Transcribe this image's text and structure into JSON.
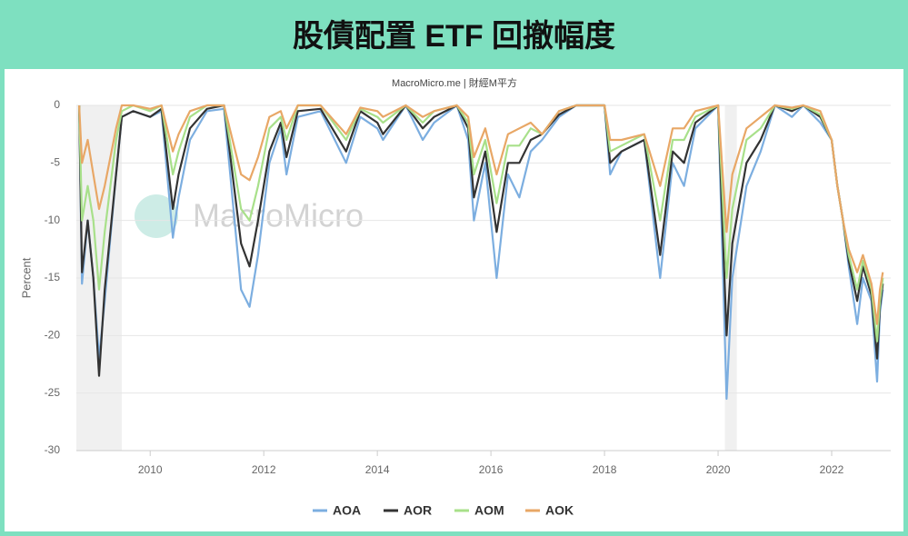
{
  "header": {
    "title": "股債配置 ETF 回撤幅度"
  },
  "chart_data": {
    "type": "line",
    "source": "MacroMicro.me | 財經M平方",
    "watermark": "MacroMicro",
    "y_label": "Percent",
    "xlim": [
      2008.7,
      2023.04
    ],
    "xticks": [
      2010,
      2012,
      2014,
      2016,
      2018,
      2020,
      2022
    ],
    "ylim": [
      -30,
      0
    ],
    "yticks": [
      0,
      -5,
      -10,
      -15,
      -20,
      -25,
      -30
    ],
    "grid": true,
    "legend": "bottom",
    "shaded_ranges": [
      [
        2008.7,
        2009.5
      ],
      [
        2020.12,
        2020.33
      ]
    ],
    "x": [
      2008.75,
      2008.8,
      2008.9,
      2009.0,
      2009.1,
      2009.2,
      2009.4,
      2009.5,
      2009.7,
      2010.0,
      2010.2,
      2010.4,
      2010.5,
      2010.7,
      2011.0,
      2011.3,
      2011.6,
      2011.75,
      2011.9,
      2012.1,
      2012.3,
      2012.4,
      2012.6,
      2013.0,
      2013.45,
      2013.7,
      2014.0,
      2014.1,
      2014.5,
      2014.8,
      2015.0,
      2015.4,
      2015.6,
      2015.7,
      2015.9,
      2016.1,
      2016.3,
      2016.5,
      2016.7,
      2016.9,
      2017.2,
      2017.5,
      2018.0,
      2018.1,
      2018.3,
      2018.7,
      2018.98,
      2019.2,
      2019.4,
      2019.6,
      2020.0,
      2020.15,
      2020.25,
      2020.5,
      2020.75,
      2021.0,
      2021.3,
      2021.5,
      2021.8,
      2022.0,
      2022.1,
      2022.2,
      2022.3,
      2022.45,
      2022.55,
      2022.7,
      2022.8,
      2022.85,
      2022.9
    ],
    "series": [
      {
        "name": "AOA",
        "color": "#7caee0",
        "values": [
          0,
          -15.5,
          -10,
          -15,
          -22,
          -17,
          -6,
          -1,
          -0.5,
          -1,
          -0.5,
          -11.5,
          -8,
          -3,
          -0.5,
          -0.3,
          -16,
          -17.5,
          -13,
          -5,
          -2,
          -6,
          -1,
          -0.5,
          -5,
          -1,
          -2,
          -3,
          0,
          -3,
          -1.5,
          0,
          -3,
          -10,
          -5,
          -15,
          -6,
          -8,
          -4,
          -3,
          -1,
          0,
          0,
          -6,
          -4,
          -3,
          -15,
          -5,
          -7,
          -2,
          0,
          -25.5,
          -15,
          -7,
          -4,
          0,
          -1,
          0,
          -1.5,
          -3,
          -7,
          -10,
          -14,
          -19,
          -15,
          -17,
          -24,
          -18,
          -16
        ]
      },
      {
        "name": "AOR",
        "color": "#333333",
        "values": [
          0,
          -14.5,
          -10,
          -15,
          -23.5,
          -16,
          -6,
          -1,
          -0.5,
          -1,
          -0.3,
          -9,
          -6,
          -2,
          -0.3,
          0,
          -12,
          -14,
          -10,
          -4,
          -1.5,
          -4.5,
          -0.5,
          -0.3,
          -4,
          -0.5,
          -1.5,
          -2.5,
          0,
          -2,
          -1,
          0,
          -2,
          -8,
          -4,
          -11,
          -5,
          -5,
          -3,
          -2.5,
          -0.8,
          0,
          0,
          -5,
          -4,
          -3,
          -13,
          -4,
          -5,
          -1.5,
          0,
          -20,
          -12,
          -5,
          -3,
          0,
          -0.5,
          0,
          -1,
          -3,
          -7,
          -10,
          -13.5,
          -17,
          -14,
          -16.5,
          -22,
          -17.5,
          -15.5
        ]
      },
      {
        "name": "AOM",
        "color": "#a8e08a",
        "values": [
          0,
          -10,
          -7,
          -10,
          -16,
          -11,
          -3,
          -0.5,
          0,
          -0.5,
          0,
          -6,
          -4,
          -1,
          0,
          0,
          -9,
          -10,
          -7,
          -2,
          -1,
          -3,
          0,
          0,
          -3,
          -0.3,
          -1,
          -1.5,
          0,
          -1.5,
          -0.5,
          0,
          -1.5,
          -6,
          -3,
          -8.5,
          -3.5,
          -3.5,
          -2,
          -2.5,
          -0.5,
          0,
          0,
          -4,
          -3.5,
          -2.5,
          -10,
          -3,
          -3,
          -1,
          0,
          -15,
          -9,
          -3,
          -2,
          0,
          -0.3,
          0,
          -0.8,
          -3,
          -7,
          -10,
          -13,
          -16,
          -13.5,
          -16,
          -20.5,
          -17,
          -15
        ]
      },
      {
        "name": "AOK",
        "color": "#e8a766",
        "values": [
          0,
          -5,
          -3,
          -6,
          -9,
          -7,
          -2,
          0,
          0,
          -0.3,
          0,
          -4,
          -2.5,
          -0.5,
          0,
          0,
          -6,
          -6.5,
          -4.5,
          -1,
          -0.5,
          -2,
          0,
          0,
          -2.5,
          -0.2,
          -0.5,
          -1,
          0,
          -1,
          -0.5,
          0,
          -1,
          -4.5,
          -2,
          -6,
          -2.5,
          -2,
          -1.5,
          -2.5,
          -0.5,
          0,
          0,
          -3,
          -3,
          -2.5,
          -7,
          -2,
          -2,
          -0.5,
          0,
          -11,
          -6,
          -2,
          -1,
          0,
          -0.2,
          0,
          -0.5,
          -3,
          -7,
          -10,
          -12.5,
          -14.5,
          -13,
          -15.5,
          -19,
          -16,
          -14.5
        ]
      }
    ]
  }
}
